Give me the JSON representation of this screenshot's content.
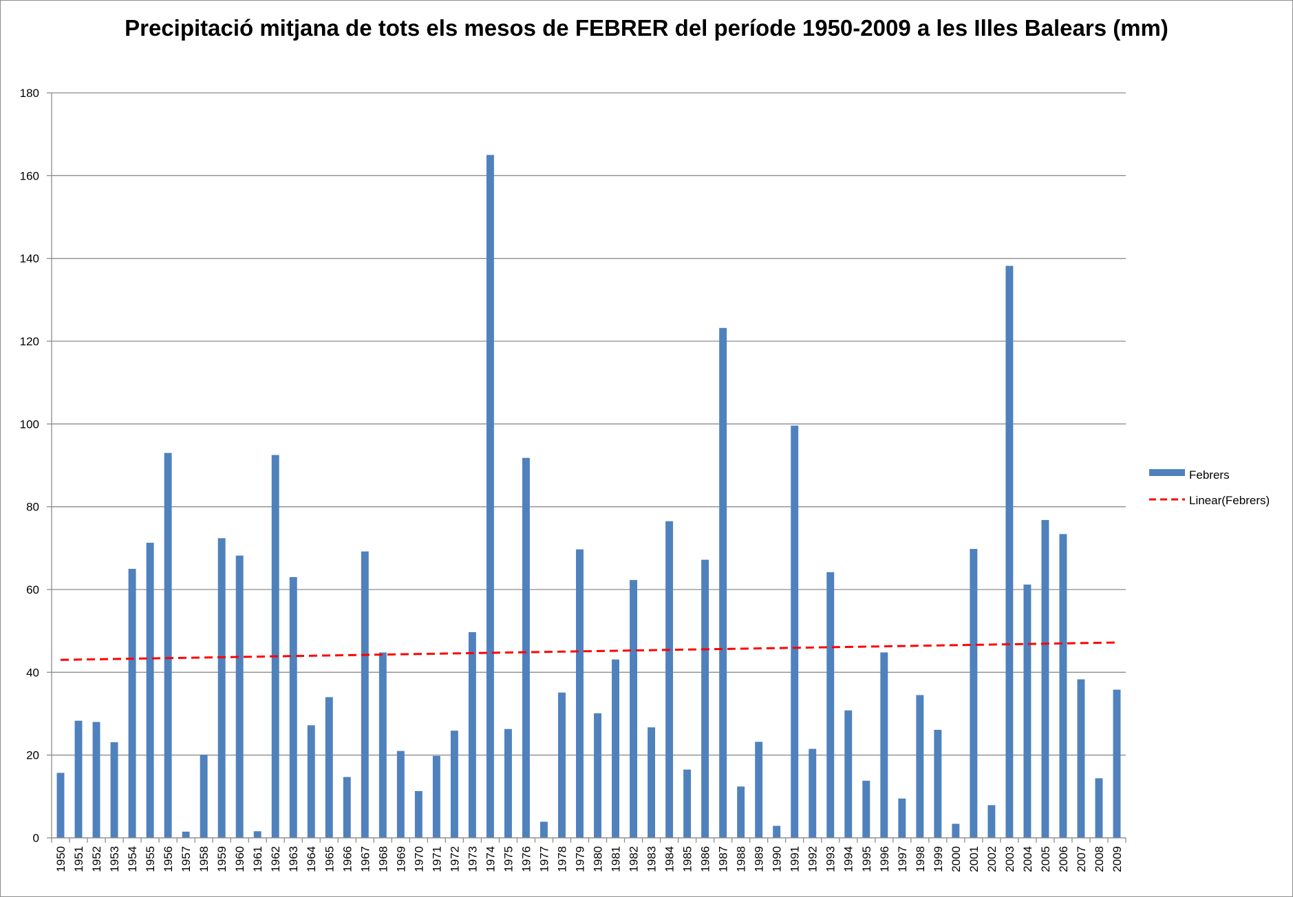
{
  "chart_data": {
    "type": "bar",
    "title": "Precipitació mitjana de tots els mesos de FEBRER del període 1950-2009 a les Illes Balears (mm)",
    "xlabel": "",
    "ylabel": "",
    "ylim": [
      0,
      180
    ],
    "yticks": [
      0,
      20,
      40,
      60,
      80,
      100,
      120,
      140,
      160,
      180
    ],
    "grid": true,
    "legend_position": "right",
    "categories": [
      "1950",
      "1951",
      "1952",
      "1953",
      "1954",
      "1955",
      "1956",
      "1957",
      "1958",
      "1959",
      "1960",
      "1961",
      "1962",
      "1963",
      "1964",
      "1965",
      "1966",
      "1967",
      "1968",
      "1969",
      "1970",
      "1971",
      "1972",
      "1973",
      "1974",
      "1975",
      "1976",
      "1977",
      "1978",
      "1979",
      "1980",
      "1981",
      "1982",
      "1983",
      "1984",
      "1985",
      "1986",
      "1987",
      "1988",
      "1989",
      "1990",
      "1991",
      "1992",
      "1993",
      "1994",
      "1995",
      "1996",
      "1997",
      "1998",
      "1999",
      "2000",
      "2001",
      "2002",
      "2003",
      "2004",
      "2005",
      "2006",
      "2007",
      "2008",
      "2009"
    ],
    "series": [
      {
        "name": "Febrers",
        "color": "#4f81bd",
        "values": [
          15.7,
          28.3,
          28.0,
          23.1,
          65.0,
          71.3,
          93.0,
          1.5,
          20.1,
          72.4,
          68.2,
          1.6,
          92.5,
          63.0,
          27.2,
          34.0,
          14.7,
          69.2,
          44.8,
          21.0,
          11.3,
          19.8,
          25.9,
          49.7,
          165.0,
          26.3,
          91.8,
          3.9,
          35.1,
          69.7,
          30.1,
          43.1,
          62.3,
          26.7,
          76.5,
          16.5,
          67.2,
          123.2,
          12.4,
          23.2,
          2.9,
          99.6,
          21.5,
          64.2,
          30.8,
          13.8,
          44.8,
          9.5,
          34.5,
          26.1,
          3.4,
          69.8,
          7.9,
          138.2,
          61.2,
          76.8,
          73.4,
          38.3,
          14.4,
          35.8
        ]
      }
    ],
    "trendline": {
      "name": "Linear(Febrers)",
      "type": "linear",
      "color": "#ff0000",
      "start": 43.0,
      "end": 47.2
    }
  }
}
